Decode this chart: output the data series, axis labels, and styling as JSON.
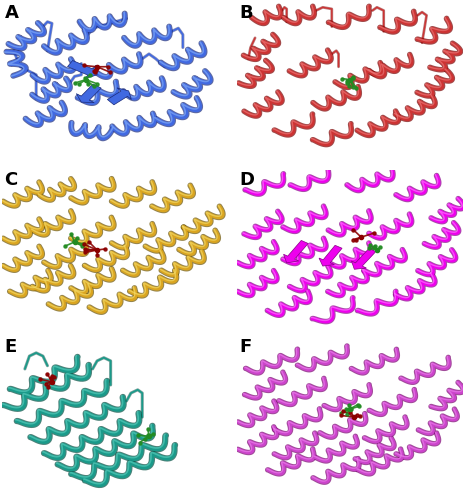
{
  "panel_labels": [
    "A",
    "B",
    "C",
    "D",
    "E",
    "F"
  ],
  "protein_colors": [
    "#4169e1",
    "#cd3333",
    "#daa520",
    "#ee00ee",
    "#1a9a8a",
    "#cc44cc"
  ],
  "protein_dark": [
    "#1a2a7a",
    "#7a0000",
    "#6b5200",
    "#880088",
    "#004d40",
    "#7a0070"
  ],
  "protein_light": [
    "#8ab4f8",
    "#f08080",
    "#f5e070",
    "#ff88ff",
    "#60d0c0",
    "#ee88ee"
  ],
  "bg_color": "#ffffff",
  "label_fontsize": 13,
  "label_fontweight": "bold",
  "figsize": [
    4.65,
    5.0
  ],
  "dpi": 100,
  "seeds": [
    1,
    2,
    3,
    4,
    5,
    6
  ]
}
